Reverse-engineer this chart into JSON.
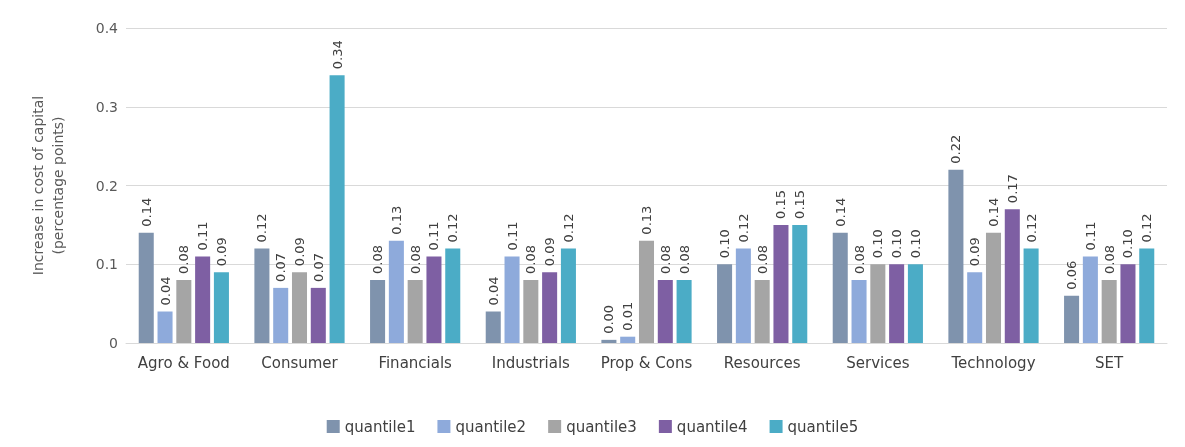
{
  "chart_data": {
    "type": "bar",
    "ylabel": "Increase in cost of capital\n(percentage points)",
    "categories": [
      "Agro & Food",
      "Consumer",
      "Financials",
      "Industrials",
      "Prop & Cons",
      "Resources",
      "Services",
      "Technology",
      "SET"
    ],
    "series": [
      {
        "name": "quantile1",
        "color": "#7f93ad",
        "values": [
          0.14,
          0.12,
          0.08,
          0.04,
          0.004,
          0.1,
          0.14,
          0.22,
          0.06
        ],
        "value_labels": [
          "0.14",
          "0.12",
          "0.08",
          "0.04",
          "0.00",
          "0.10",
          "0.14",
          "0.22",
          "0.06"
        ]
      },
      {
        "name": "quantile2",
        "color": "#8eaadb",
        "values": [
          0.04,
          0.07,
          0.13,
          0.11,
          0.008,
          0.12,
          0.08,
          0.09,
          0.11
        ],
        "value_labels": [
          "0.04",
          "0.07",
          "0.13",
          "0.11",
          "0.01",
          "0.12",
          "0.08",
          "0.09",
          "0.11"
        ]
      },
      {
        "name": "quantile3",
        "color": "#a5a5a5",
        "values": [
          0.08,
          0.09,
          0.08,
          0.08,
          0.13,
          0.08,
          0.1,
          0.14,
          0.08
        ],
        "value_labels": [
          "0.08",
          "0.09",
          "0.08",
          "0.08",
          "0.13",
          "0.08",
          "0.10",
          "0.14",
          "0.08"
        ]
      },
      {
        "name": "quantile4",
        "color": "#7e5fa3",
        "values": [
          0.11,
          0.07,
          0.11,
          0.09,
          0.08,
          0.15,
          0.1,
          0.17,
          0.1
        ],
        "value_labels": [
          "0.11",
          "0.07",
          "0.11",
          "0.09",
          "0.08",
          "0.15",
          "0.10",
          "0.17",
          "0.10"
        ]
      },
      {
        "name": "quantile5",
        "color": "#4bacc6",
        "values": [
          0.09,
          0.34,
          0.12,
          0.12,
          0.08,
          0.15,
          0.1,
          0.12,
          0.12
        ],
        "value_labels": [
          "0.09",
          "0.34",
          "0.12",
          "0.12",
          "0.08",
          "0.15",
          "0.10",
          "0.12",
          "0.12"
        ]
      }
    ],
    "ylim": [
      0,
      0.4
    ],
    "yticks": [
      0,
      0.1,
      0.2,
      0.3,
      0.4
    ],
    "grid": "y",
    "legend": "bottom"
  }
}
